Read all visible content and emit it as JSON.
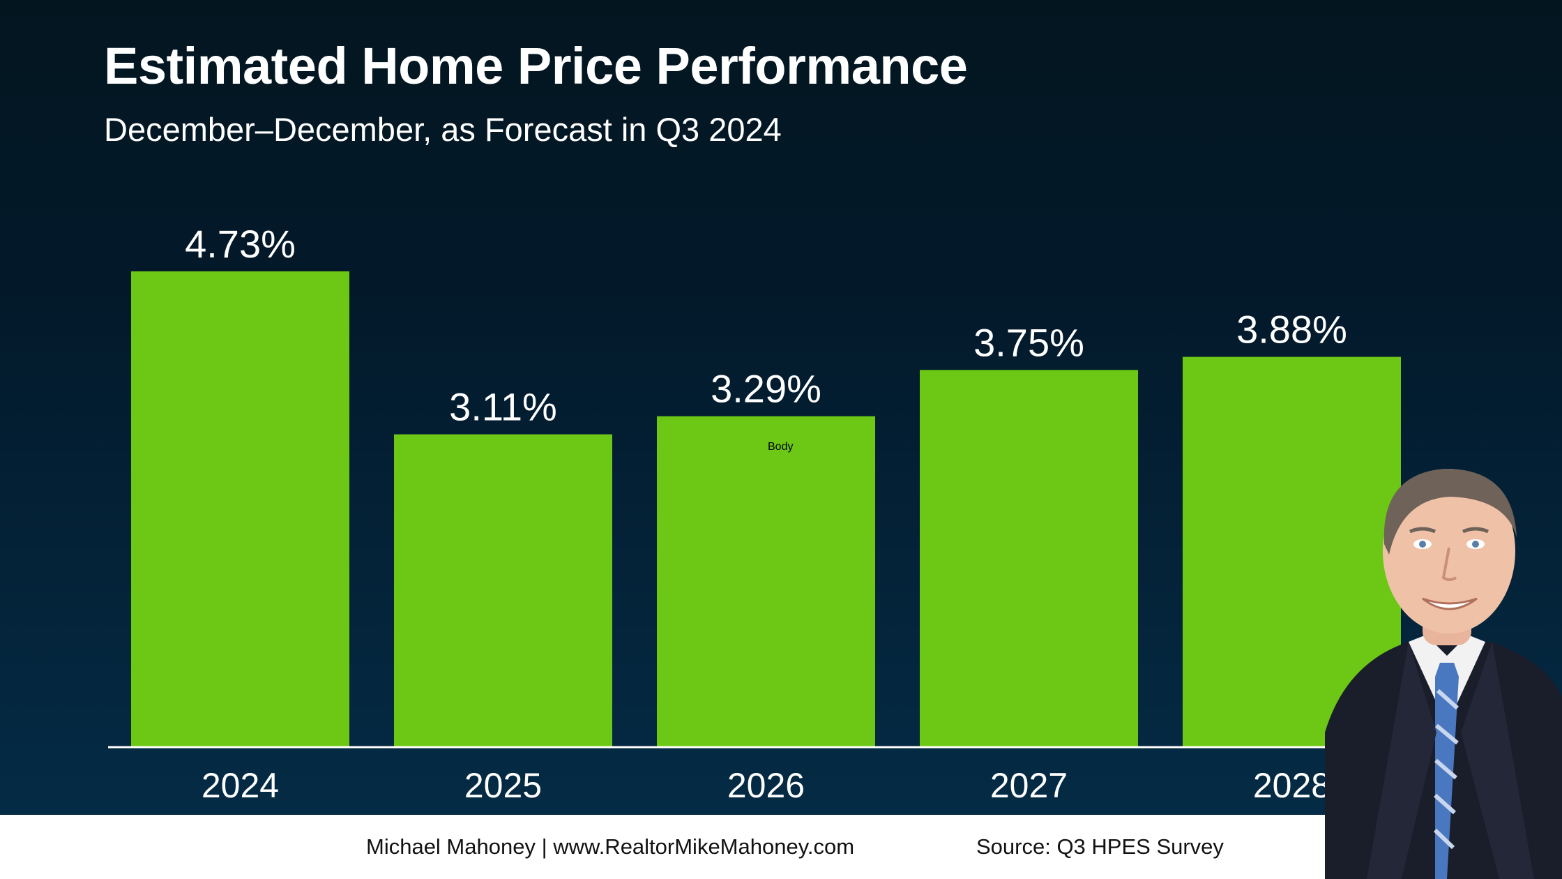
{
  "footer": {
    "credit": "Michael Mahoney | www.RealtorMikeMahoney.com",
    "source": "Source: Q3 HPES Survey"
  },
  "overlay": {
    "body_label": "Body"
  },
  "colors": {
    "bar": "#6cc814",
    "axis": "#ffffff",
    "text": "#ffffff"
  },
  "chart_data": {
    "type": "bar",
    "title": "Estimated Home Price Performance",
    "subtitle": "December–December, as Forecast in Q3 2024",
    "categories": [
      "2024",
      "2025",
      "2026",
      "2027",
      "2028"
    ],
    "values": [
      4.73,
      3.11,
      3.29,
      3.75,
      3.88
    ],
    "data_labels": [
      "4.73%",
      "3.11%",
      "3.29%",
      "3.75%",
      "3.88%"
    ],
    "ylim": [
      0,
      4.73
    ],
    "grid": false,
    "legend": "none"
  }
}
